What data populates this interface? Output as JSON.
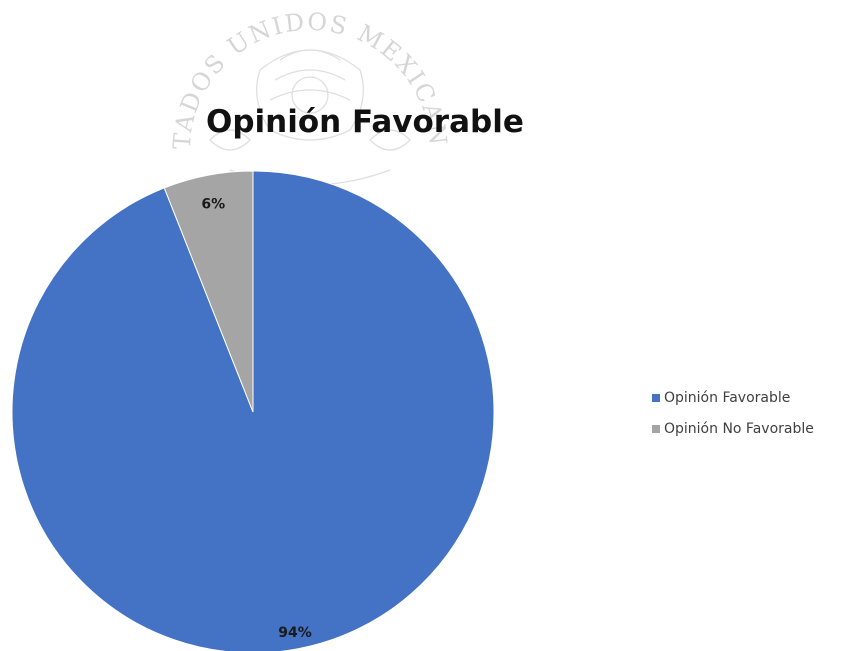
{
  "chart_data": {
    "type": "pie",
    "title": "Opinión Favorable",
    "categories": [
      "Opinión Favorable",
      "Opinión No Favorable"
    ],
    "values": [
      94,
      6
    ],
    "labels": [
      "94%",
      "6%"
    ],
    "colors": [
      "#4472C4",
      "#A5A5A5"
    ],
    "legend_position": "right"
  },
  "watermark": {
    "text": "ESTADOS UNIDOS MEXICANOS",
    "icon": "mexican-coat-of-arms-seal"
  }
}
